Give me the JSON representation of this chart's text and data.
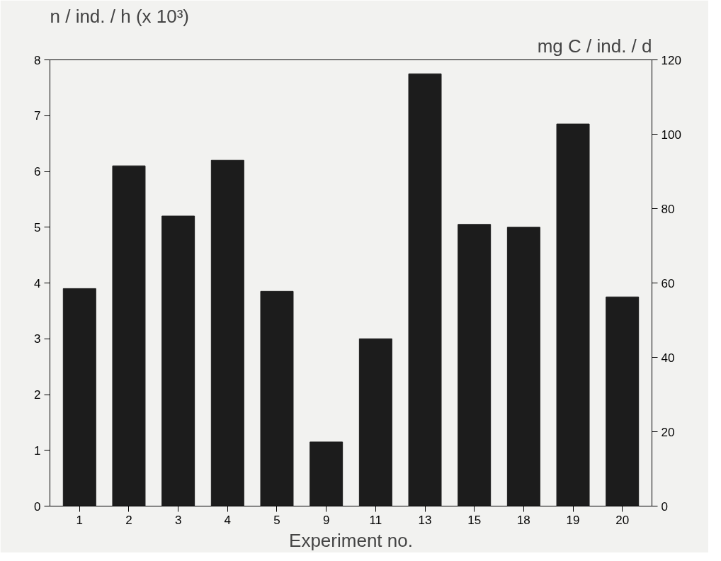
{
  "chart_data": {
    "type": "bar",
    "ylabel": "n / ind. / h (x 10³)",
    "y2label": "mg C / ind. / d",
    "xlabel": "Experiment no.",
    "categories": [
      "1",
      "2",
      "3",
      "4",
      "5",
      "9",
      "11",
      "13",
      "15",
      "18",
      "19",
      "20"
    ],
    "series": [
      {
        "color": "#1c1c1c",
        "values": [
          3.9,
          6.1,
          5.2,
          6.2,
          3.85,
          1.15,
          3.0,
          7.75,
          5.05,
          5.0,
          6.85,
          3.75
        ]
      }
    ],
    "ylim": [
      0,
      8
    ],
    "yticks": [
      0,
      1,
      2,
      3,
      4,
      5,
      6,
      7,
      8
    ],
    "y2lim": [
      0,
      120
    ],
    "y2ticks": [
      0,
      20,
      40,
      60,
      80,
      100,
      120
    ],
    "grid": false
  }
}
